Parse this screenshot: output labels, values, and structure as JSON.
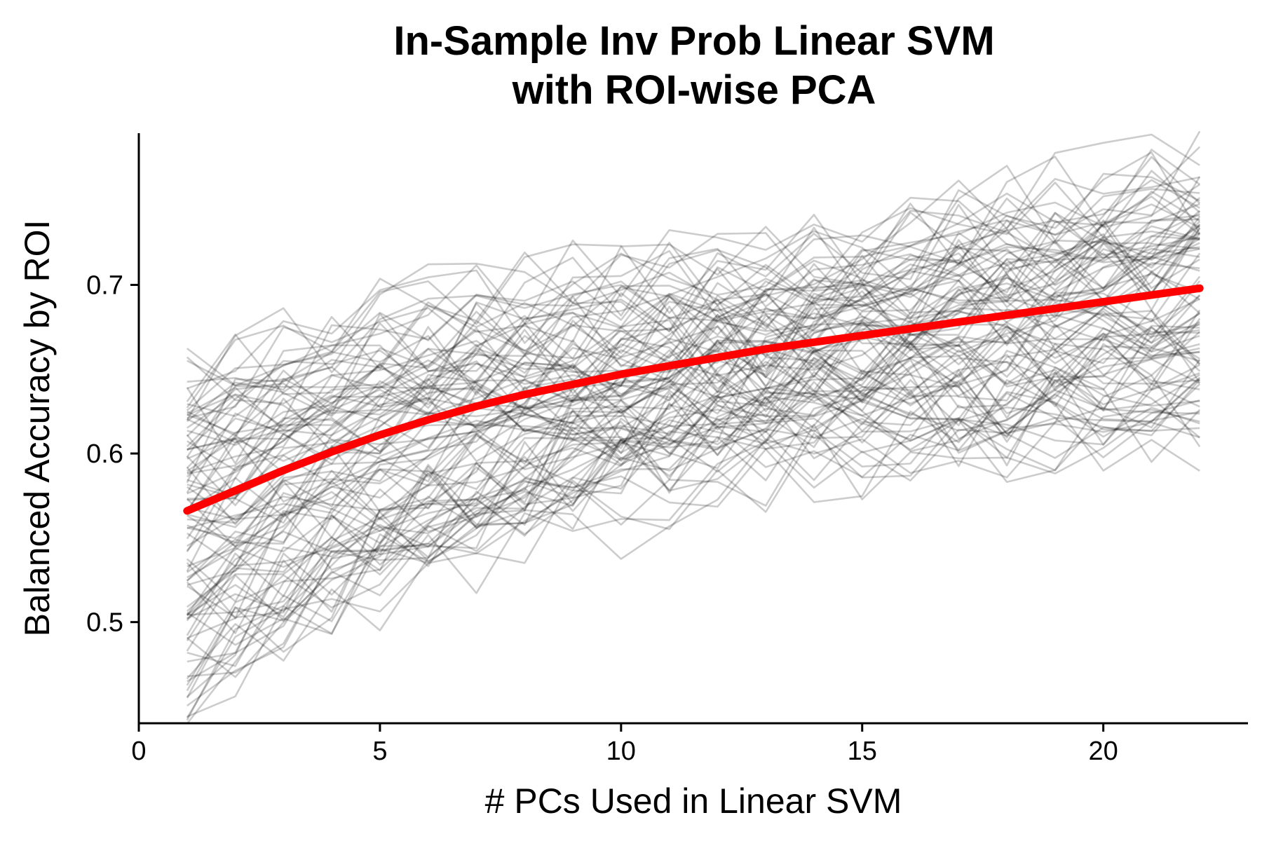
{
  "chart_data": {
    "type": "line",
    "title": [
      "In-Sample Inv Prob Linear SVM",
      "with ROI-wise PCA"
    ],
    "xlabel": "# PCs Used in Linear SVM",
    "ylabel": "Balanced Accuracy by ROI",
    "xlim": [
      0,
      23
    ],
    "ylim": [
      0.44,
      0.79
    ],
    "x_ticks": [
      0,
      5,
      10,
      15,
      20
    ],
    "x_tick_labels": [
      "0",
      "5",
      "10",
      "15",
      "20"
    ],
    "y_ticks": [
      0.5,
      0.6,
      0.7
    ],
    "y_tick_labels": [
      "0.5",
      "0.6",
      "0.7"
    ],
    "grid": false,
    "legend": "none",
    "x": [
      1,
      2,
      3,
      4,
      5,
      6,
      7,
      8,
      9,
      10,
      11,
      12,
      13,
      14,
      15,
      16,
      17,
      18,
      19,
      20,
      21,
      22
    ],
    "roi_series_count": 100,
    "roi_series_color": "#000000",
    "roi_series_opacity": 0.2,
    "roi_start_range": [
      0.455,
      0.652
    ],
    "roi_end_range": [
      0.612,
      0.781
    ],
    "trend": {
      "color": "#ff0000",
      "x": [
        1,
        2,
        3,
        4,
        5,
        6,
        7,
        8,
        9,
        10,
        11,
        12,
        13,
        14,
        15,
        16,
        17,
        18,
        19,
        20,
        21,
        22
      ],
      "y": [
        0.566,
        0.578,
        0.59,
        0.601,
        0.611,
        0.62,
        0.628,
        0.635,
        0.641,
        0.647,
        0.652,
        0.657,
        0.662,
        0.666,
        0.67,
        0.674,
        0.678,
        0.682,
        0.686,
        0.69,
        0.694,
        0.698
      ]
    }
  }
}
